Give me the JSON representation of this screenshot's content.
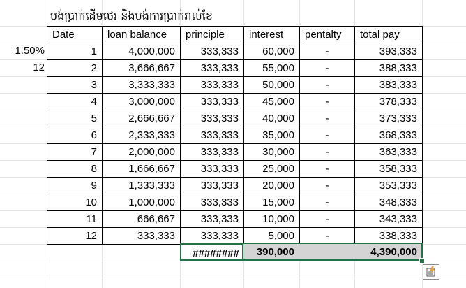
{
  "title": "បង់ប្រាក់ដើមថេរ និងបង់ការប្រាក់រាល់ខែ",
  "side_inputs": {
    "rate": "1.50%",
    "months": "12"
  },
  "headers": [
    "Date",
    "loan balance",
    "principle",
    "interest",
    "pentalty",
    "total pay"
  ],
  "rows": [
    [
      "1",
      "4,000,000",
      "333,333",
      "60,000",
      "-",
      "393,333"
    ],
    [
      "2",
      "3,666,667",
      "333,333",
      "55,000",
      "-",
      "388,333"
    ],
    [
      "3",
      "3,333,333",
      "333,333",
      "50,000",
      "-",
      "383,333"
    ],
    [
      "4",
      "3,000,000",
      "333,333",
      "45,000",
      "-",
      "378,333"
    ],
    [
      "5",
      "2,666,667",
      "333,333",
      "40,000",
      "-",
      "373,333"
    ],
    [
      "6",
      "2,333,333",
      "333,333",
      "35,000",
      "-",
      "368,333"
    ],
    [
      "7",
      "2,000,000",
      "333,333",
      "30,000",
      "-",
      "363,333"
    ],
    [
      "8",
      "1,666,667",
      "333,333",
      "25,000",
      "-",
      "358,333"
    ],
    [
      "9",
      "1,333,333",
      "333,333",
      "20,000",
      "-",
      "353,333"
    ],
    [
      "10",
      "1,000,000",
      "333,333",
      "15,000",
      "-",
      "348,333"
    ],
    [
      "11",
      "666,667",
      "333,333",
      "10,000",
      "-",
      "343,333"
    ],
    [
      "12",
      "333,333",
      "333,333",
      "5,000",
      "-",
      "338,333"
    ]
  ],
  "totals": {
    "principle": "########",
    "interest": "390,000",
    "total_pay": "4,390,000"
  },
  "colors": {
    "selection": "#217346",
    "total_fill": "#d4d4d4",
    "gridline": "#e3e3e3"
  },
  "icons": {
    "quick_analysis": "quick-analysis-icon"
  }
}
